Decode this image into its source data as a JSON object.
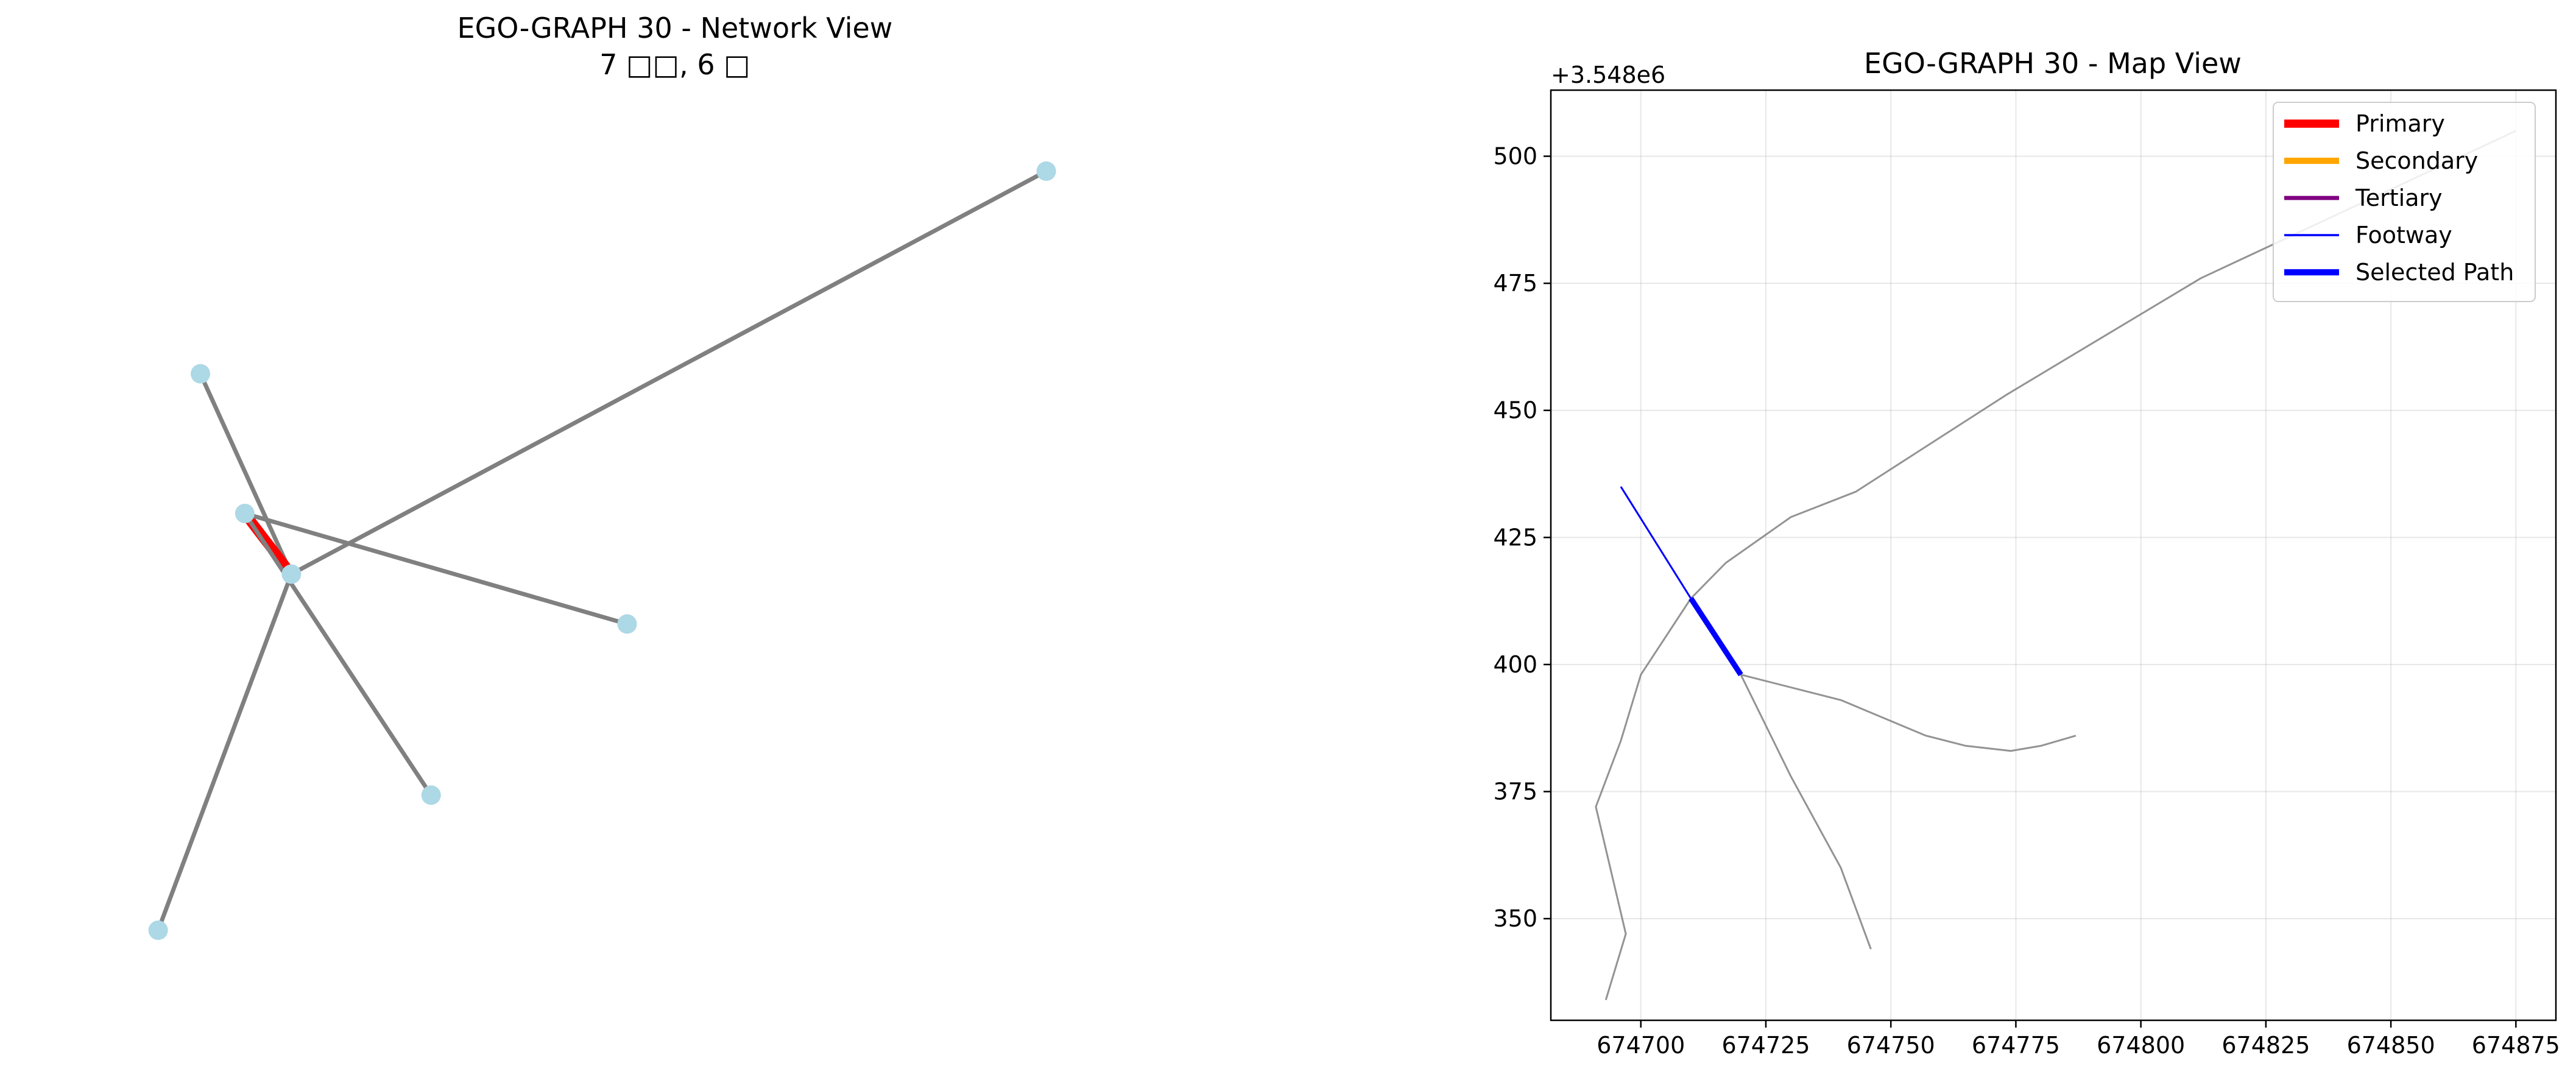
{
  "chart_data": [
    {
      "type": "network",
      "title": "EGO-GRAPH 30 - Network View",
      "subtitle": "7 □□, 6 □",
      "node_color": "#add8e6",
      "default_edge_color": "#808080",
      "highlight_edge_color": "#ff0000",
      "nodes": [
        {
          "id": "n1",
          "x": 0.063,
          "y": 0.736
        },
        {
          "id": "n2",
          "x": 0.024,
          "y": 0.011
        },
        {
          "id": "n3",
          "x": 0.104,
          "y": 0.554
        },
        {
          "id": "n4",
          "x": 0.147,
          "y": 0.475
        },
        {
          "id": "n5",
          "x": 0.457,
          "y": 0.41
        },
        {
          "id": "n6",
          "x": 0.276,
          "y": 0.187
        },
        {
          "id": "n7",
          "x": 0.844,
          "y": 1.0
        }
      ],
      "edges": [
        {
          "source": "n1",
          "target": "n4",
          "highlight": false
        },
        {
          "source": "n4",
          "target": "n7",
          "highlight": false
        },
        {
          "source": "n4",
          "target": "n2",
          "highlight": false
        },
        {
          "source": "n4",
          "target": "n3",
          "highlight": true
        },
        {
          "source": "n3",
          "target": "n5",
          "highlight": false
        },
        {
          "source": "n3",
          "target": "n6",
          "highlight": false
        }
      ]
    },
    {
      "type": "line",
      "title": "EGO-GRAPH 30 - Map View",
      "offset_label": "+3.548e6",
      "xlim": [
        674682,
        674883
      ],
      "ylim": [
        330,
        513
      ],
      "xticks": [
        674700,
        674725,
        674750,
        674775,
        674800,
        674825,
        674850,
        674875
      ],
      "yticks": [
        350,
        375,
        400,
        425,
        450,
        475,
        500
      ],
      "grid": true,
      "legend": {
        "position": "top-right",
        "entries": [
          {
            "label": "Primary",
            "color": "#ff0000",
            "width": 4
          },
          {
            "label": "Secondary",
            "color": "#ffa500",
            "width": 3
          },
          {
            "label": "Tertiary",
            "color": "#800080",
            "width": 2
          },
          {
            "label": "Footway",
            "color": "#0000ff",
            "width": 1
          },
          {
            "label": "Selected Path",
            "color": "#0000ff",
            "width": 3
          }
        ]
      },
      "series": [
        {
          "style": "edge",
          "color": "#808080",
          "points": [
            [
              674693,
              334
            ],
            [
              674697,
              347
            ],
            [
              674691,
              372
            ],
            [
              674696,
              385
            ],
            [
              674700,
              398
            ],
            [
              674710,
              413
            ]
          ]
        },
        {
          "style": "edge",
          "color": "#808080",
          "points": [
            [
              674710,
              413
            ],
            [
              674717,
              420
            ],
            [
              674730,
              429
            ],
            [
              674743,
              434
            ],
            [
              674773,
              453
            ],
            [
              674812,
              476
            ],
            [
              674875,
              505
            ]
          ]
        },
        {
          "style": "edge",
          "color": "#808080",
          "points": [
            [
              674720,
              398
            ],
            [
              674730,
              378
            ],
            [
              674740,
              360
            ],
            [
              674746,
              344
            ]
          ]
        },
        {
          "style": "edge",
          "color": "#808080",
          "points": [
            [
              674720,
              398
            ],
            [
              674740,
              393
            ],
            [
              674757,
              386
            ],
            [
              674765,
              384
            ],
            [
              674774,
              383
            ],
            [
              674780,
              384
            ],
            [
              674787,
              386
            ]
          ]
        },
        {
          "style": "footway",
          "color": "#0000ff",
          "points": [
            [
              674696,
              435
            ],
            [
              674710,
              413
            ]
          ]
        },
        {
          "style": "selected",
          "color": "#0000ff",
          "points": [
            [
              674710,
              413
            ],
            [
              674720,
              398
            ]
          ]
        }
      ]
    }
  ]
}
